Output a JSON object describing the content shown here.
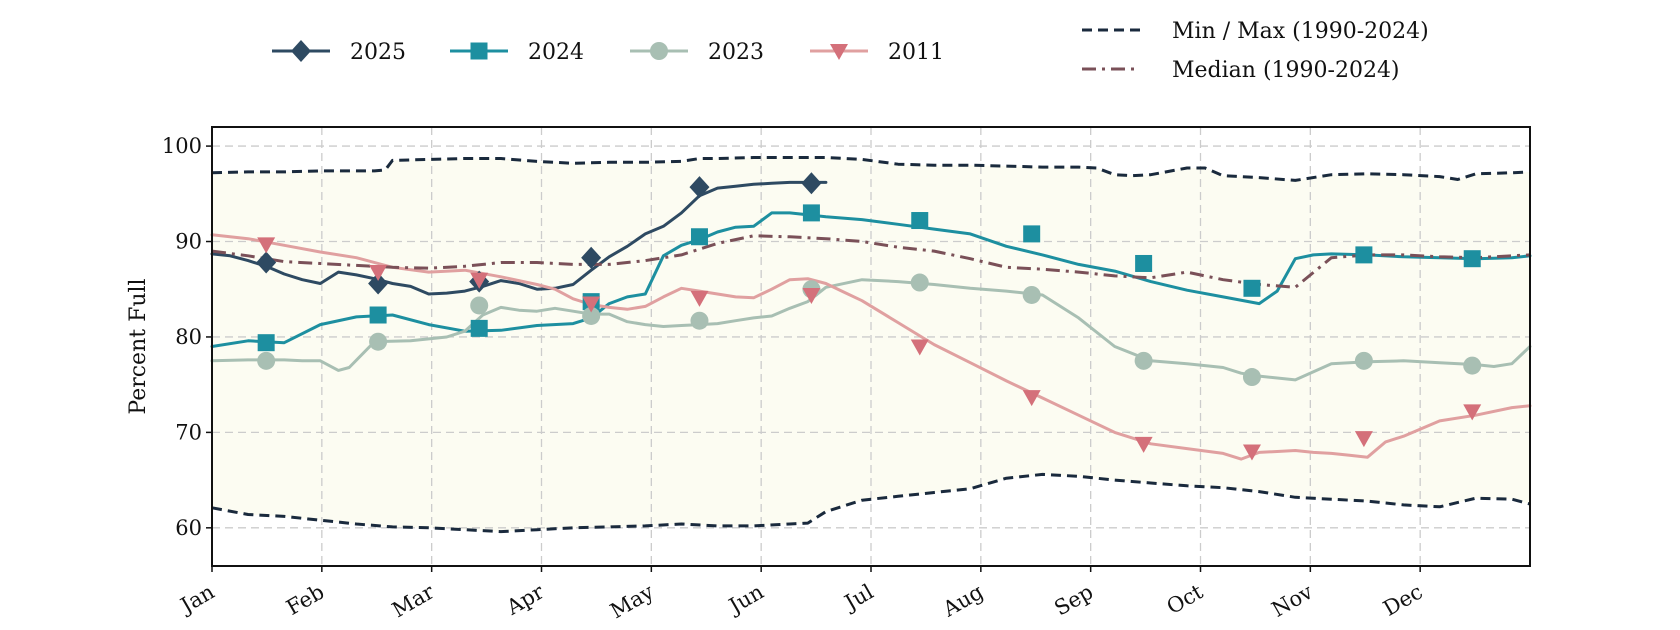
{
  "chart_data": {
    "type": "line",
    "title": "",
    "xlabel": "",
    "ylabel": "Percent Full",
    "ylim": [
      56,
      102
    ],
    "yticks": [
      60,
      70,
      80,
      90,
      100
    ],
    "xticks": [
      "Jan",
      "Feb",
      "Mar",
      "Apr",
      "May",
      "Jun",
      "Jul",
      "Aug",
      "Sep",
      "Oct",
      "Nov",
      "Dec"
    ],
    "grid": true,
    "band_fill": "#fcfcf2",
    "legend_placement": "top",
    "series": [
      {
        "name": "2025",
        "color": "#2e4a62",
        "style": "solid",
        "marker": "diamond",
        "x": [
          0,
          5,
          10,
          15,
          20,
          25,
          30,
          35,
          40,
          45,
          50,
          55,
          60,
          65,
          70,
          75,
          80,
          85,
          90,
          95,
          100,
          105,
          110,
          115,
          120,
          125,
          130,
          135,
          140,
          145,
          150,
          155,
          160,
          165,
          170
        ],
        "y": [
          88.7,
          88.5,
          88.0,
          87.4,
          86.6,
          86.0,
          85.6,
          86.8,
          86.5,
          86.1,
          85.6,
          85.3,
          84.5,
          84.6,
          84.8,
          85.3,
          85.9,
          85.6,
          85.0,
          85.1,
          85.5,
          87.0,
          88.4,
          89.5,
          90.8,
          91.6,
          93.0,
          94.8,
          95.6,
          95.8,
          96.0,
          96.1,
          96.2,
          96.2,
          96.2
        ],
        "markers_x": [
          15,
          46,
          74,
          105,
          135,
          166
        ],
        "markers_y": [
          87.8,
          85.6,
          85.8,
          88.3,
          95.7,
          96.1
        ]
      },
      {
        "name": "2024",
        "color": "#1d8fa0",
        "style": "solid",
        "marker": "square",
        "x": [
          0,
          10,
          20,
          30,
          40,
          50,
          60,
          70,
          80,
          90,
          100,
          105,
          110,
          115,
          120,
          125,
          130,
          135,
          140,
          145,
          150,
          155,
          160,
          170,
          180,
          190,
          200,
          210,
          220,
          230,
          240,
          250,
          260,
          270,
          280,
          290,
          295,
          300,
          305,
          310,
          320,
          330,
          340,
          350,
          360,
          365
        ],
        "y": [
          79.0,
          79.6,
          79.4,
          81.3,
          82.1,
          82.3,
          81.3,
          80.6,
          80.7,
          81.2,
          81.4,
          82.0,
          83.5,
          84.2,
          84.5,
          88.5,
          89.6,
          90.2,
          91.0,
          91.5,
          91.6,
          93.0,
          93.0,
          92.6,
          92.3,
          91.8,
          91.3,
          90.8,
          89.5,
          88.6,
          87.6,
          86.9,
          85.8,
          84.9,
          84.2,
          83.5,
          84.8,
          88.2,
          88.6,
          88.7,
          88.6,
          88.4,
          88.3,
          88.2,
          88.3,
          88.5
        ],
        "markers_x": [
          15,
          46,
          74,
          105,
          135,
          166,
          196,
          227,
          258,
          288,
          319,
          349
        ],
        "markers_y": [
          79.4,
          82.3,
          80.9,
          83.7,
          90.5,
          93.0,
          92.2,
          90.8,
          87.7,
          85.1,
          88.6,
          88.2
        ]
      },
      {
        "name": "2023",
        "color": "#a8bfb3",
        "style": "solid",
        "marker": "circle",
        "x": [
          0,
          10,
          20,
          25,
          30,
          35,
          38,
          45,
          55,
          60,
          65,
          70,
          75,
          80,
          85,
          90,
          95,
          100,
          105,
          110,
          115,
          120,
          125,
          130,
          135,
          140,
          145,
          150,
          155,
          160,
          165,
          170,
          180,
          190,
          200,
          210,
          220,
          230,
          240,
          250,
          260,
          270,
          280,
          285,
          290,
          300,
          310,
          320,
          330,
          340,
          350,
          355,
          360,
          365
        ],
        "y": [
          77.5,
          77.6,
          77.6,
          77.5,
          77.5,
          76.5,
          76.8,
          79.5,
          79.6,
          79.8,
          80.0,
          80.6,
          82.3,
          83.1,
          82.8,
          82.7,
          83.0,
          82.7,
          82.4,
          82.4,
          81.6,
          81.3,
          81.1,
          81.2,
          81.3,
          81.4,
          81.7,
          82.0,
          82.2,
          83.0,
          83.7,
          85.2,
          86.0,
          85.8,
          85.5,
          85.1,
          84.8,
          84.4,
          82.0,
          79.0,
          77.5,
          77.2,
          76.8,
          76.2,
          75.9,
          75.5,
          77.2,
          77.4,
          77.5,
          77.3,
          77.1,
          76.9,
          77.2,
          79.0
        ],
        "markers_x": [
          15,
          46,
          74,
          105,
          135,
          166,
          196,
          227,
          258,
          288,
          319,
          349
        ],
        "markers_y": [
          77.5,
          79.5,
          83.3,
          82.2,
          81.7,
          85.0,
          85.7,
          84.4,
          77.5,
          75.8,
          77.5,
          77.0
        ]
      },
      {
        "name": "2011",
        "color": "#e0a0a0",
        "style": "solid",
        "marker": "triangle-down",
        "marker_color": "#d4707a",
        "x": [
          0,
          10,
          20,
          30,
          40,
          50,
          60,
          70,
          80,
          90,
          95,
          100,
          105,
          110,
          115,
          120,
          125,
          130,
          135,
          140,
          145,
          150,
          155,
          160,
          165,
          170,
          175,
          180,
          190,
          200,
          210,
          220,
          230,
          240,
          250,
          260,
          270,
          280,
          285,
          290,
          295,
          300,
          305,
          310,
          315,
          320,
          325,
          330,
          340,
          350,
          360,
          365
        ],
        "y": [
          90.7,
          90.3,
          89.6,
          88.9,
          88.3,
          87.3,
          86.8,
          87.0,
          86.3,
          85.5,
          85.0,
          84.0,
          83.4,
          83.1,
          82.9,
          83.2,
          84.2,
          85.1,
          84.8,
          84.5,
          84.2,
          84.1,
          85.0,
          86.0,
          86.1,
          85.6,
          84.7,
          83.8,
          81.5,
          79.2,
          77.3,
          75.4,
          73.6,
          71.8,
          70.0,
          68.8,
          68.3,
          67.8,
          67.2,
          67.9,
          68.0,
          68.1,
          67.9,
          67.8,
          67.6,
          67.4,
          69.0,
          69.6,
          71.2,
          71.8,
          72.6,
          72.8
        ],
        "markers_x": [
          15,
          46,
          74,
          105,
          135,
          166,
          196,
          227,
          258,
          288,
          319,
          349
        ],
        "markers_y": [
          89.7,
          86.8,
          86.0,
          83.5,
          84.1,
          84.4,
          79.0,
          73.7,
          68.8,
          68.0,
          69.4,
          72.2
        ]
      },
      {
        "name": "Min / Max (1990-2024)",
        "color": "#1a2a3d",
        "style": "dashed",
        "role": "max",
        "x": [
          0,
          10,
          20,
          30,
          40,
          45,
          48,
          50,
          60,
          70,
          80,
          90,
          100,
          110,
          120,
          130,
          135,
          140,
          150,
          160,
          170,
          180,
          190,
          200,
          210,
          220,
          230,
          240,
          245,
          250,
          255,
          260,
          270,
          275,
          280,
          290,
          300,
          310,
          320,
          330,
          340,
          345,
          350,
          360,
          365
        ],
        "y": [
          97.2,
          97.3,
          97.3,
          97.4,
          97.4,
          97.4,
          97.5,
          98.5,
          98.6,
          98.7,
          98.7,
          98.4,
          98.2,
          98.3,
          98.3,
          98.4,
          98.7,
          98.7,
          98.8,
          98.8,
          98.8,
          98.6,
          98.1,
          98.0,
          98.0,
          97.9,
          97.8,
          97.8,
          97.7,
          97.0,
          96.9,
          97.0,
          97.7,
          97.7,
          96.9,
          96.7,
          96.4,
          97.0,
          97.1,
          97.0,
          96.8,
          96.5,
          97.1,
          97.2,
          97.3
        ]
      },
      {
        "name": "",
        "color": "#1a2a3d",
        "style": "dashed",
        "role": "min",
        "x": [
          0,
          10,
          20,
          30,
          40,
          50,
          60,
          70,
          80,
          90,
          100,
          110,
          120,
          130,
          140,
          150,
          160,
          165,
          170,
          180,
          190,
          200,
          210,
          220,
          230,
          240,
          250,
          260,
          270,
          280,
          290,
          300,
          310,
          320,
          330,
          340,
          350,
          360,
          365
        ],
        "y": [
          62.1,
          61.4,
          61.2,
          60.8,
          60.4,
          60.1,
          60.0,
          59.8,
          59.6,
          59.8,
          60.0,
          60.1,
          60.2,
          60.4,
          60.2,
          60.2,
          60.4,
          60.5,
          61.7,
          62.9,
          63.3,
          63.7,
          64.1,
          65.2,
          65.6,
          65.4,
          65.0,
          64.7,
          64.4,
          64.2,
          63.8,
          63.2,
          63.0,
          62.8,
          62.4,
          62.2,
          63.1,
          63.0,
          62.5
        ]
      },
      {
        "name": "Median (1990-2024)",
        "color": "#7a5058",
        "style": "dashdot",
        "x": [
          0,
          10,
          20,
          30,
          40,
          50,
          60,
          70,
          80,
          90,
          100,
          110,
          120,
          130,
          140,
          150,
          160,
          170,
          180,
          190,
          200,
          210,
          220,
          230,
          240,
          250,
          260,
          270,
          280,
          290,
          300,
          310,
          320,
          330,
          340,
          350,
          360,
          365
        ],
        "y": [
          89.0,
          88.5,
          87.9,
          87.7,
          87.5,
          87.3,
          87.2,
          87.4,
          87.8,
          87.8,
          87.6,
          87.6,
          88.0,
          88.6,
          89.8,
          90.6,
          90.5,
          90.3,
          90.0,
          89.4,
          89.0,
          88.2,
          87.3,
          87.1,
          86.8,
          86.4,
          86.2,
          86.8,
          86.0,
          85.5,
          85.2,
          88.3,
          88.6,
          88.6,
          88.4,
          88.3,
          88.5,
          88.6
        ]
      }
    ]
  }
}
